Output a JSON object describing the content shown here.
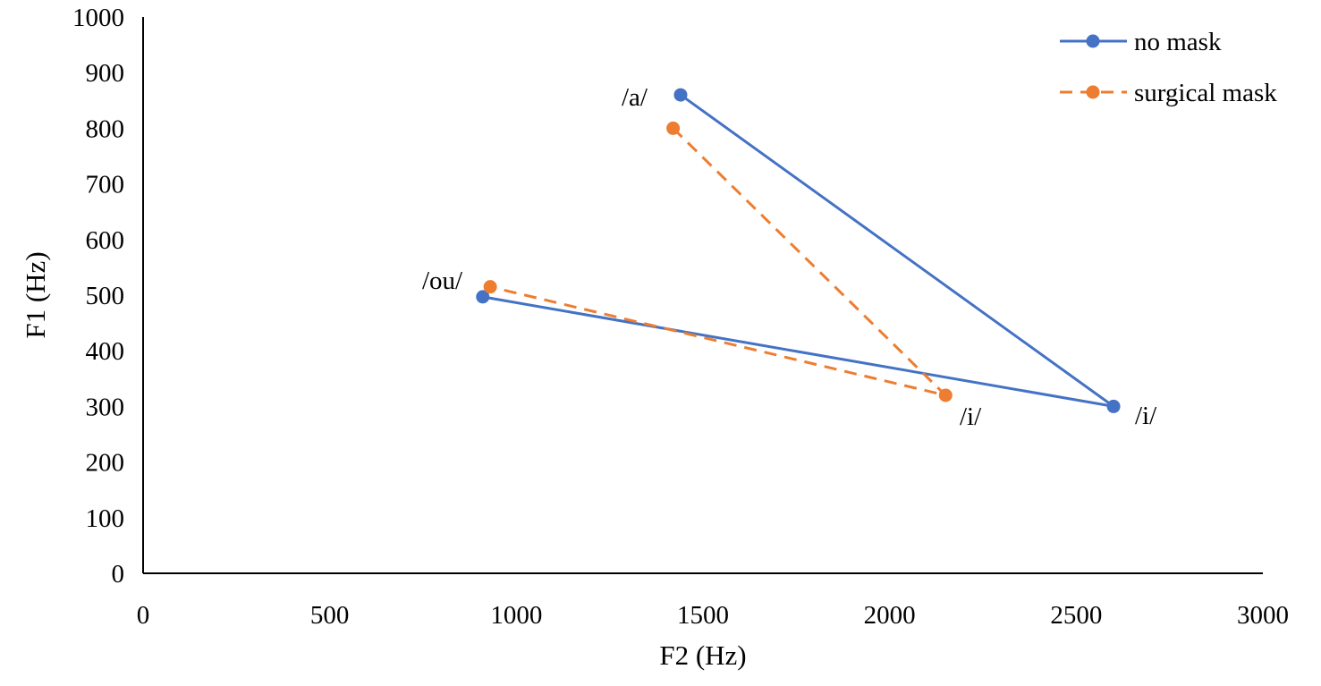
{
  "chart_data": {
    "type": "line",
    "title": "",
    "xlabel": "F2 (Hz)",
    "ylabel": "F1 (Hz)",
    "xlim": [
      0,
      3000
    ],
    "ylim": [
      0,
      1000
    ],
    "xticks": [
      "0",
      "500",
      "1000",
      "1500",
      "2000",
      "2500",
      "3000"
    ],
    "yticks": [
      "0",
      "100",
      "200",
      "300",
      "400",
      "500",
      "600",
      "700",
      "800",
      "900",
      "1000"
    ],
    "grid": false,
    "legend_position": "top-right",
    "series": [
      {
        "name": "no mask",
        "color": "#4472C4",
        "dash": "solid",
        "marker": "circle",
        "points": [
          {
            "x": 1440,
            "y": 860
          },
          {
            "x": 2600,
            "y": 300
          },
          {
            "x": 910,
            "y": 497
          }
        ]
      },
      {
        "name": "surgical mask",
        "color": "#ED7D31",
        "dash": "dashed",
        "marker": "circle",
        "points": [
          {
            "x": 1420,
            "y": 800
          },
          {
            "x": 2150,
            "y": 320
          },
          {
            "x": 930,
            "y": 515
          }
        ]
      }
    ],
    "annotations": [
      {
        "text": "/a/"
      },
      {
        "text": "/ou/"
      },
      {
        "text": "/i/"
      },
      {
        "text": "/i/"
      }
    ]
  }
}
